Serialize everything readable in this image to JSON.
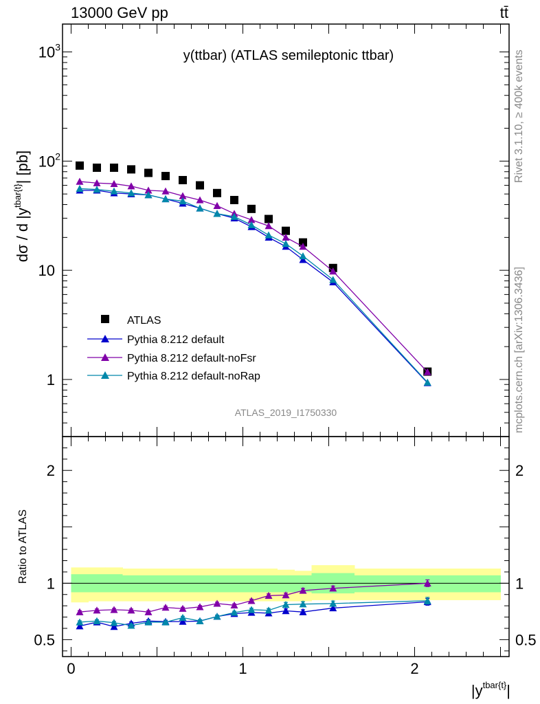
{
  "header": {
    "energy_label": "13000 GeV pp",
    "process_label": "tt̄"
  },
  "side_labels": {
    "rivet": "Rivet 3.1.10, ≥ 400k events",
    "mcplots": "mcplots.cern.ch [arXiv:1306.3436]"
  },
  "colors": {
    "data": "#000000",
    "default": "#0000cc",
    "noFsr": "#8000a8",
    "noRap": "#0088aa",
    "band_outer": "#ffff99",
    "band_inner": "#99ff99"
  },
  "chart_data": [
    {
      "type": "scatter",
      "title": "y(ttbar) (ATLAS semileptonic ttbar)",
      "analysis_id": "ATLAS_2019_I1750330",
      "ylabel": "dσ / d |y^{tbar{t}}| [pb]",
      "ylabel_prefix": "dσ / d |y",
      "ylabel_superscript": "tbar{t}",
      "ylabel_suffix": "| [pb]",
      "yscale": "log",
      "ylim": [
        0.3,
        1800
      ],
      "xlim": [
        -0.05,
        2.55
      ],
      "y_tick_labels": [
        {
          "value": 1,
          "label": "1"
        },
        {
          "value": 10,
          "label": "10"
        },
        {
          "value": 100,
          "label": "10",
          "exp": "2"
        },
        {
          "value": 1000,
          "label": "10",
          "exp": "3"
        }
      ],
      "legend": [
        {
          "name": "ATLAS",
          "key": "data"
        },
        {
          "name": "Pythia 8.212 default",
          "key": "default"
        },
        {
          "name": "Pythia 8.212 default-noFsr",
          "key": "noFsr"
        },
        {
          "name": "Pythia 8.212 default-noRap",
          "key": "noRap"
        }
      ],
      "x": [
        0.05,
        0.15,
        0.25,
        0.35,
        0.45,
        0.55,
        0.65,
        0.75,
        0.85,
        0.95,
        1.05,
        1.15,
        1.25,
        1.35,
        1.525,
        2.075
      ],
      "series": [
        {
          "name": "ATLAS",
          "key": "data",
          "values": [
            91,
            87,
            87,
            84,
            78,
            73,
            67,
            60,
            51,
            44,
            36.5,
            29.5,
            23,
            18,
            10.5,
            1.18
          ]
        },
        {
          "name": "Pythia 8.212 default",
          "key": "default",
          "values": [
            54,
            54,
            51,
            50,
            49,
            45,
            41,
            37,
            33,
            30,
            25,
            20,
            16.5,
            12.5,
            7.8,
            0.93
          ]
        },
        {
          "name": "Pythia 8.212 default-noFsr",
          "key": "noFsr",
          "values": [
            65,
            63,
            62,
            59,
            54,
            53,
            48,
            44,
            39,
            33,
            29,
            25.5,
            20,
            16.5,
            9.8,
            1.17
          ]
        },
        {
          "name": "Pythia 8.212 default-noRap",
          "key": "noRap",
          "values": [
            56,
            55,
            53,
            51,
            49,
            45,
            43,
            37,
            33,
            31,
            26,
            21,
            17.5,
            13.5,
            8.2,
            0.94
          ]
        }
      ]
    },
    {
      "type": "scatter",
      "ylabel": "Ratio to ATLAS",
      "ylim": [
        0.35,
        2.3
      ],
      "xlim": [
        -0.05,
        2.55
      ],
      "xlabel": "|y^{tbar{t}}|",
      "xlabel_prefix": "|y",
      "xlabel_superscript": "tbar{t}",
      "xlabel_suffix": "|",
      "x_tick_labels": [
        {
          "value": 0,
          "label": "0"
        },
        {
          "value": 1,
          "label": "1"
        },
        {
          "value": 2,
          "label": "2"
        }
      ],
      "y_tick_labels": [
        {
          "value": 0.5,
          "label": "0.5"
        },
        {
          "value": 1,
          "label": "1"
        },
        {
          "value": 2,
          "label": "2"
        }
      ],
      "bands": {
        "edges": [
          0.0,
          0.1,
          0.2,
          0.3,
          0.4,
          0.5,
          0.6,
          0.7,
          0.8,
          0.9,
          1.0,
          1.1,
          1.2,
          1.3,
          1.4,
          1.65,
          2.5
        ],
        "inner": [
          [
            0.92,
            1.08
          ],
          [
            0.92,
            1.08
          ],
          [
            0.92,
            1.08
          ],
          [
            0.92,
            1.07
          ],
          [
            0.92,
            1.07
          ],
          [
            0.92,
            1.07
          ],
          [
            0.92,
            1.07
          ],
          [
            0.92,
            1.07
          ],
          [
            0.92,
            1.07
          ],
          [
            0.92,
            1.07
          ],
          [
            0.92,
            1.07
          ],
          [
            0.92,
            1.07
          ],
          [
            0.92,
            1.07
          ],
          [
            0.92,
            1.07
          ],
          [
            0.91,
            1.09
          ],
          [
            0.92,
            1.07
          ]
        ],
        "outer": [
          [
            0.83,
            1.14
          ],
          [
            0.84,
            1.14
          ],
          [
            0.84,
            1.14
          ],
          [
            0.84,
            1.13
          ],
          [
            0.84,
            1.13
          ],
          [
            0.84,
            1.13
          ],
          [
            0.84,
            1.13
          ],
          [
            0.84,
            1.13
          ],
          [
            0.84,
            1.13
          ],
          [
            0.84,
            1.13
          ],
          [
            0.84,
            1.13
          ],
          [
            0.84,
            1.13
          ],
          [
            0.84,
            1.12
          ],
          [
            0.84,
            1.11
          ],
          [
            0.85,
            1.16
          ],
          [
            0.85,
            1.13
          ]
        ]
      },
      "x": [
        0.05,
        0.15,
        0.25,
        0.35,
        0.45,
        0.55,
        0.65,
        0.75,
        0.85,
        0.95,
        1.05,
        1.15,
        1.25,
        1.35,
        1.525,
        2.075
      ],
      "series": [
        {
          "name": "Pythia 8.212 default",
          "key": "default",
          "values": [
            0.62,
            0.655,
            0.615,
            0.645,
            0.665,
            0.66,
            0.66,
            0.665,
            0.705,
            0.73,
            0.74,
            0.735,
            0.755,
            0.745,
            0.78,
            0.835
          ]
        },
        {
          "name": "Pythia 8.212 default-noFsr",
          "key": "noFsr",
          "values": [
            0.745,
            0.76,
            0.765,
            0.76,
            0.745,
            0.785,
            0.775,
            0.79,
            0.82,
            0.805,
            0.845,
            0.89,
            0.895,
            0.935,
            0.955,
            1.0
          ]
        },
        {
          "name": "Pythia 8.212 default-noRap",
          "key": "noRap",
          "values": [
            0.655,
            0.665,
            0.65,
            0.625,
            0.655,
            0.655,
            0.695,
            0.665,
            0.705,
            0.74,
            0.765,
            0.76,
            0.81,
            0.815,
            0.82,
            0.845
          ]
        }
      ],
      "errors": [
        {
          "key": "default",
          "values": [
            0.012,
            0.012,
            0.012,
            0.012,
            0.012,
            0.012,
            0.012,
            0.012,
            0.012,
            0.012,
            0.014,
            0.016,
            0.018,
            0.02,
            0.02,
            0.03
          ]
        },
        {
          "key": "noFsr",
          "values": [
            0.012,
            0.012,
            0.012,
            0.012,
            0.012,
            0.012,
            0.012,
            0.012,
            0.012,
            0.012,
            0.014,
            0.016,
            0.018,
            0.02,
            0.02,
            0.03
          ]
        },
        {
          "key": "noRap",
          "values": [
            0.012,
            0.012,
            0.012,
            0.012,
            0.012,
            0.012,
            0.012,
            0.012,
            0.012,
            0.012,
            0.014,
            0.016,
            0.02,
            0.022,
            0.022,
            0.03
          ]
        }
      ]
    }
  ]
}
